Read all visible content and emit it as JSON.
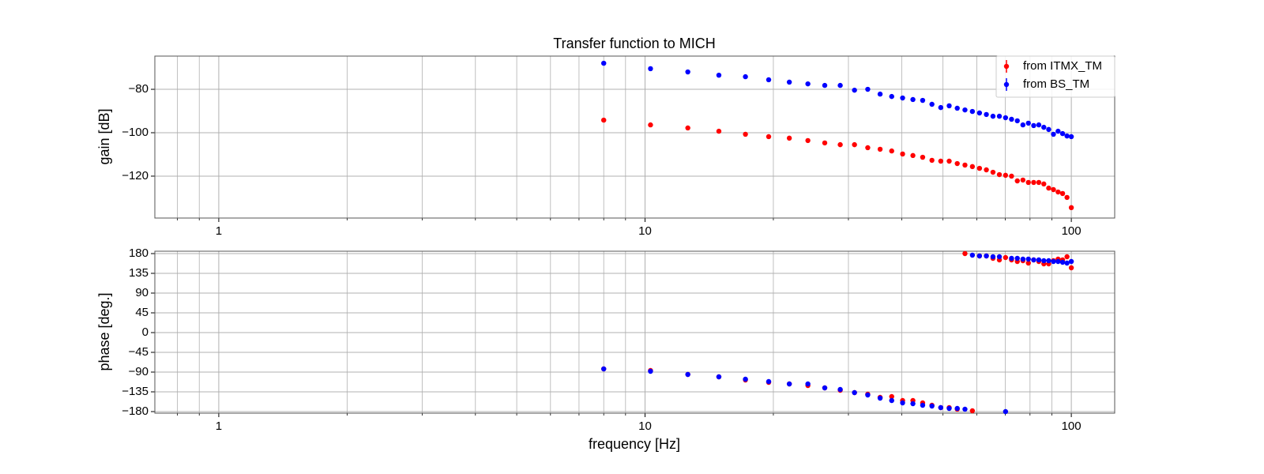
{
  "chart_data": [
    {
      "type": "scatter",
      "title": "Transfer function to MICH",
      "ylabel": "gain [dB]",
      "log_x": true,
      "grid": true,
      "legend": "upper right",
      "xlim": [
        0.708,
        126.4
      ],
      "xticks": [
        1,
        10,
        100
      ],
      "xminor_ticks": [
        0.8,
        0.9,
        2,
        3,
        4,
        5,
        6,
        7,
        8,
        9,
        20,
        30,
        40,
        50,
        60,
        70,
        80,
        90
      ],
      "ylim": [
        -139.3,
        -64.7
      ],
      "yticks": [
        {
          "value": -120,
          "label": "−120"
        },
        {
          "value": -100,
          "label": "−100"
        },
        {
          "value": -80,
          "label": "−80"
        }
      ],
      "x": [
        8.0,
        10.3,
        12.6,
        14.9,
        17.2,
        19.5,
        21.8,
        24.1,
        26.4,
        28.7,
        31.0,
        33.3,
        35.6,
        37.9,
        40.2,
        42.5,
        44.8,
        47.1,
        49.4,
        51.7,
        54.0,
        56.3,
        58.6,
        60.9,
        63.2,
        65.5,
        67.8,
        70.1,
        72.4,
        74.7,
        77.0,
        79.3,
        81.6,
        83.9,
        86.2,
        88.5,
        90.8,
        93.1,
        95.4,
        97.7,
        100.0
      ],
      "series": [
        {
          "name": "from ITMX_TM",
          "color": "#ff0000",
          "values": [
            -94.2,
            -96.4,
            -97.8,
            -99.3,
            -100.7,
            -101.8,
            -102.5,
            -103.6,
            -104.7,
            -105.5,
            -105.5,
            -106.9,
            -107.6,
            -108.4,
            -109.8,
            -110.5,
            -111.3,
            -112.7,
            -113.1,
            -113.1,
            -114.2,
            -114.9,
            -115.6,
            -116.4,
            -117.1,
            -118.2,
            -119.3,
            -119.6,
            -120,
            -122.2,
            -121.8,
            -122.9,
            -122.9,
            -122.9,
            -123.6,
            -125.5,
            -126.2,
            -127.3,
            -128,
            -129.8,
            -134.5
          ]
        },
        {
          "name": "from BS_TM",
          "color": "#0000ff",
          "values": [
            -68,
            -70.5,
            -72,
            -73.5,
            -74.2,
            -75.6,
            -76.7,
            -77.5,
            -78.2,
            -78.2,
            -80.4,
            -80,
            -82.2,
            -83.3,
            -84,
            -84.7,
            -85.1,
            -86.9,
            -88.4,
            -87.6,
            -88.7,
            -89.5,
            -90.2,
            -90.9,
            -91.6,
            -92.4,
            -92.4,
            -93.1,
            -93.8,
            -94.5,
            -96.4,
            -95.6,
            -96.7,
            -96.4,
            -97.5,
            -98.5,
            -100.7,
            -99.3,
            -100.4,
            -101.5,
            -101.8
          ]
        }
      ]
    },
    {
      "type": "scatter",
      "ylabel": "phase [deg.]",
      "xlabel": "frequency [Hz]",
      "log_x": true,
      "grid": true,
      "xlim": [
        0.708,
        126.4
      ],
      "xticks": [
        1,
        10,
        100
      ],
      "xminor_ticks": [
        0.8,
        0.9,
        2,
        3,
        4,
        5,
        6,
        7,
        8,
        9,
        20,
        30,
        40,
        50,
        60,
        70,
        80,
        90
      ],
      "ylim": [
        -183.6,
        185.4
      ],
      "yticks": [
        {
          "value": -180,
          "label": "−180"
        },
        {
          "value": -135,
          "label": "−135"
        },
        {
          "value": -90,
          "label": "−90"
        },
        {
          "value": -45,
          "label": "−45"
        },
        0,
        45,
        90,
        135,
        180
      ],
      "x": [
        8.0,
        10.3,
        12.6,
        14.9,
        17.2,
        19.5,
        21.8,
        24.1,
        26.4,
        28.7,
        31.0,
        33.3,
        35.6,
        37.9,
        40.2,
        42.5,
        44.8,
        47.1,
        49.4,
        51.7,
        54.0,
        56.3,
        58.6,
        60.9,
        63.2,
        65.5,
        67.8,
        70.1,
        72.4,
        74.7,
        77.0,
        79.3,
        81.6,
        83.9,
        86.2,
        88.5,
        90.8,
        93.1,
        95.4,
        97.7,
        100.0
      ],
      "series": [
        {
          "name": "from ITMX_TM",
          "color": "#ff0000",
          "values": [
            -82.8,
            -86.4,
            -95.4,
            -100.8,
            -108,
            -113.4,
            -117,
            -120.6,
            -126,
            -131.4,
            -136.8,
            -140.4,
            -147.6,
            -145.8,
            -154.8,
            -154.8,
            -160.2,
            -165.6,
            -171,
            -171,
            -174.6,
            180,
            -178.2,
            174.6,
            174.6,
            169.2,
            165.6,
            171,
            165.6,
            162,
            163.8,
            158.4,
            165.6,
            162,
            156.6,
            156.6,
            163.8,
            167.4,
            165.6,
            172.8,
            147.6
          ]
        },
        {
          "name": "from BS_TM",
          "color": "#0000ff",
          "values": [
            -82.8,
            -88.2,
            -95.4,
            -100.8,
            -106.2,
            -111.6,
            -117,
            -117,
            -126,
            -129.6,
            -136.8,
            -142.2,
            -149.4,
            -154.8,
            -160.2,
            -162,
            -165.6,
            -167.4,
            -171,
            -172.8,
            -172.8,
            -174.6,
            176.4,
            174.6,
            174.6,
            172.8,
            172.8,
            -180,
            169.2,
            169.2,
            167.4,
            167.4,
            165.6,
            165.6,
            163.8,
            163.8,
            162,
            162,
            160.2,
            158.4,
            162
          ]
        }
      ]
    }
  ]
}
